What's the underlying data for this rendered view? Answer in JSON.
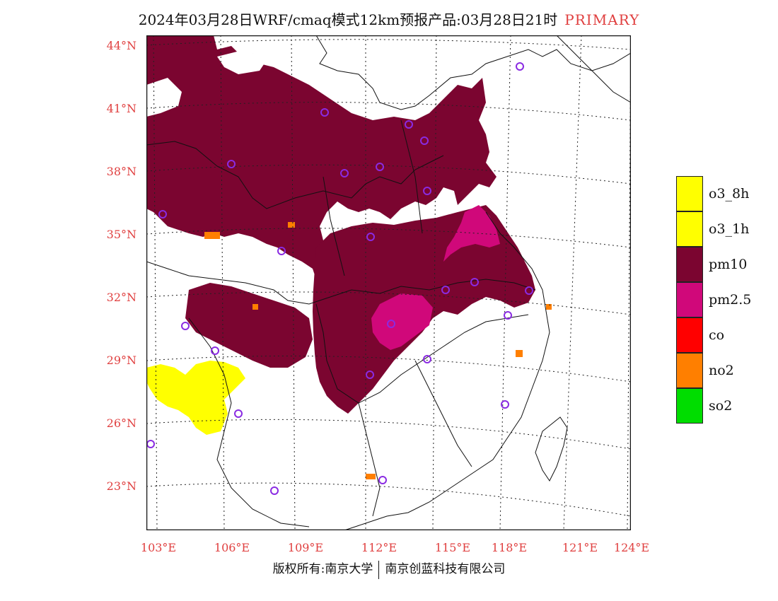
{
  "title": {
    "main": "2024年03月28日WRF/cmaq模式12km预报产品:03月28日21时",
    "tag": "PRIMARY"
  },
  "axes": {
    "lat_labels": [
      "44°N",
      "41°N",
      "38°N",
      "35°N",
      "32°N",
      "29°N",
      "26°N",
      "23°N"
    ],
    "lon_labels": [
      "103°E",
      "106°E",
      "109°E",
      "112°E",
      "115°E",
      "118°E",
      "121°E",
      "124°E"
    ]
  },
  "legend": {
    "items": [
      {
        "label": "o3_8h",
        "color": "#ffff00"
      },
      {
        "label": "o3_1h",
        "color": "#ffff00"
      },
      {
        "label": "pm10",
        "color": "#7b0530"
      },
      {
        "label": "pm2.5",
        "color": "#d0087a"
      },
      {
        "label": "co",
        "color": "#ff0000"
      },
      {
        "label": "no2",
        "color": "#ff7f00"
      },
      {
        "label": "so2",
        "color": "#00dd00"
      }
    ]
  },
  "footer": {
    "left": "版权所有:南京大学",
    "right": "南京创蓝科技有限公司"
  },
  "colors": {
    "pm10": "#7b0530",
    "pm25": "#d0087a",
    "o3": "#ffff00",
    "no2": "#ff7f00",
    "axis_text": "#e04040",
    "station_marker": "#8a2be2"
  }
}
